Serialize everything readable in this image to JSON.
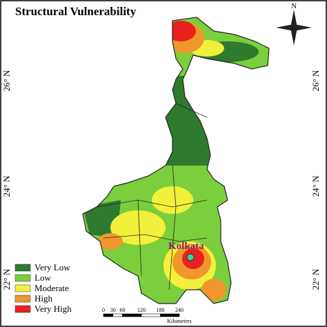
{
  "title": "Structural Vulnerability",
  "legend": [
    {
      "label": "Very Low",
      "color": "#2e7a2e"
    },
    {
      "label": "Low",
      "color": "#7ccf3c"
    },
    {
      "label": "Moderate",
      "color": "#f1f03a"
    },
    {
      "label": "High",
      "color": "#f0962c"
    },
    {
      "label": "Very High",
      "color": "#e8211f"
    }
  ],
  "latitude_labels": [
    "26° N",
    "24° N",
    "22° N"
  ],
  "north_label": "N",
  "city": "Kolkata",
  "scale_bar": {
    "ticks": [
      0,
      30,
      60,
      120,
      180,
      240
    ],
    "unit": "Kilometers"
  }
}
